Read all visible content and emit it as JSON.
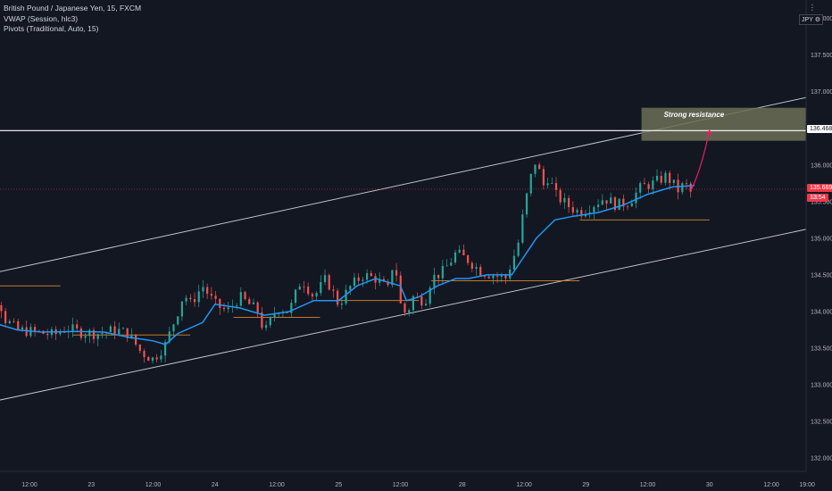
{
  "legend": {
    "symbol": "British Pound / Japanese Yen, 15, FXCM",
    "vwap": "VWAP (Session, hlc3)",
    "pivots": "Pivots (Traditional, Auto, 15)"
  },
  "top_right": {
    "menu_glyph": "⋮",
    "currency": "JPY",
    "settings_glyph": "⚙"
  },
  "annotations": {
    "resistance_label": "Strong resistance"
  },
  "price_tags": {
    "resistance": "136.468",
    "last": "135.669",
    "countdown": "13:54",
    "hidden_partial": "13"
  },
  "colors": {
    "background": "#131722",
    "up_candle": "#26a69a",
    "down_candle": "#ef5350",
    "vwap": "#2196f3",
    "channel": "#d1d4dc",
    "pivot": "#e08a2c",
    "resistance_line": "#ffffff",
    "last_price": "#f23645",
    "arrow": "#e91e63",
    "resistance_box": "#6b6f55"
  },
  "chart_data": {
    "type": "candlestick",
    "symbol": "GBPJPY",
    "timeframe": "15",
    "yaxis": {
      "ylim": [
        131.82,
        138.25
      ],
      "ticks": [
        "132.000",
        "132.500",
        "133.000",
        "133.500",
        "134.000",
        "134.500",
        "135.000",
        "135.500",
        "136.000",
        "136.500",
        "137.000",
        "137.500",
        "138.000"
      ]
    },
    "xaxis": {
      "ticks": [
        "12:00",
        "23",
        "12:00",
        "24",
        "12:00",
        "25",
        "12:00",
        "28",
        "12:00",
        "29",
        "12:00",
        "30",
        "12:00",
        "19:00"
      ],
      "tick_t": [
        0.5,
        1,
        1.5,
        2,
        2.5,
        3,
        3.5,
        4,
        4.5,
        5,
        5.5,
        6,
        6.5,
        6.79
      ]
    },
    "price_path": [
      [
        0.0,
        134.05
      ],
      [
        0.15,
        133.85
      ],
      [
        0.25,
        134.2
      ],
      [
        0.3,
        133.9
      ],
      [
        0.4,
        133.75
      ],
      [
        0.55,
        133.72
      ],
      [
        0.7,
        133.68
      ],
      [
        0.8,
        133.78
      ],
      [
        0.9,
        133.72
      ],
      [
        1.05,
        133.7
      ],
      [
        1.2,
        133.75
      ],
      [
        1.3,
        133.7
      ],
      [
        1.4,
        133.45
      ],
      [
        1.5,
        133.35
      ],
      [
        1.6,
        133.55
      ],
      [
        1.7,
        134.0
      ],
      [
        1.75,
        134.25
      ],
      [
        1.8,
        134.1
      ],
      [
        1.9,
        134.35
      ],
      [
        2.0,
        134.1
      ],
      [
        2.1,
        134.0
      ],
      [
        2.2,
        134.2
      ],
      [
        2.35,
        134.0
      ],
      [
        2.4,
        133.7
      ],
      [
        2.5,
        134.05
      ],
      [
        2.6,
        134.0
      ],
      [
        2.7,
        134.45
      ],
      [
        2.8,
        134.2
      ],
      [
        2.9,
        134.45
      ],
      [
        3.0,
        134.1
      ],
      [
        3.1,
        134.35
      ],
      [
        3.2,
        134.5
      ],
      [
        3.3,
        134.45
      ],
      [
        3.4,
        134.3
      ],
      [
        3.45,
        134.75
      ],
      [
        3.5,
        134.1
      ],
      [
        3.55,
        133.95
      ],
      [
        3.6,
        134.2
      ],
      [
        3.7,
        134.15
      ],
      [
        3.75,
        134.45
      ],
      [
        3.85,
        134.55
      ],
      [
        3.95,
        134.8
      ],
      [
        4.05,
        134.7
      ],
      [
        4.15,
        134.55
      ],
      [
        4.25,
        134.5
      ],
      [
        4.35,
        134.45
      ],
      [
        4.45,
        134.9
      ],
      [
        4.5,
        135.4
      ],
      [
        4.55,
        135.8
      ],
      [
        4.6,
        136.1
      ],
      [
        4.65,
        135.7
      ],
      [
        4.7,
        135.85
      ],
      [
        4.75,
        135.6
      ],
      [
        4.85,
        135.45
      ],
      [
        4.95,
        135.35
      ],
      [
        5.05,
        135.45
      ],
      [
        5.15,
        135.55
      ],
      [
        5.25,
        135.45
      ],
      [
        5.35,
        135.5
      ],
      [
        5.45,
        135.7
      ],
      [
        5.55,
        135.75
      ],
      [
        5.65,
        135.85
      ],
      [
        5.75,
        135.65
      ],
      [
        5.8,
        135.75
      ],
      [
        5.85,
        135.62
      ],
      [
        5.88,
        135.67
      ]
    ],
    "vwap_path": [
      [
        0.0,
        134.05
      ],
      [
        0.2,
        133.85
      ],
      [
        0.4,
        133.75
      ],
      [
        0.6,
        133.72
      ],
      [
        0.9,
        133.73
      ],
      [
        1.1,
        133.72
      ],
      [
        1.3,
        133.65
      ],
      [
        1.5,
        133.6
      ],
      [
        1.6,
        133.55
      ],
      [
        1.7,
        133.7
      ],
      [
        1.9,
        133.85
      ],
      [
        2.0,
        134.1
      ],
      [
        2.2,
        134.05
      ],
      [
        2.4,
        133.95
      ],
      [
        2.6,
        134.0
      ],
      [
        2.8,
        134.15
      ],
      [
        3.0,
        134.15
      ],
      [
        3.15,
        134.35
      ],
      [
        3.3,
        134.45
      ],
      [
        3.5,
        134.35
      ],
      [
        3.55,
        134.15
      ],
      [
        3.65,
        134.2
      ],
      [
        3.8,
        134.35
      ],
      [
        3.95,
        134.45
      ],
      [
        4.05,
        134.45
      ],
      [
        4.2,
        134.5
      ],
      [
        4.4,
        134.5
      ],
      [
        4.6,
        135.0
      ],
      [
        4.75,
        135.25
      ],
      [
        4.9,
        135.3
      ],
      [
        5.1,
        135.35
      ],
      [
        5.3,
        135.45
      ],
      [
        5.5,
        135.6
      ],
      [
        5.7,
        135.7
      ],
      [
        5.88,
        135.72
      ]
    ],
    "channel_upper": [
      [
        0.0,
        134.45
      ],
      [
        7.0,
        137.0
      ]
    ],
    "channel_lower": [
      [
        0.0,
        132.7
      ],
      [
        7.0,
        135.2
      ]
    ],
    "resistance_level": 136.468,
    "last_price": 135.669,
    "resistance_zone": {
      "t": [
        5.45,
        6.95
      ],
      "y": [
        136.33,
        136.78
      ]
    },
    "arrow": {
      "from": [
        5.85,
        135.65
      ],
      "to": [
        6.0,
        136.48
      ]
    },
    "pivot_levels": [
      {
        "t": [
          0.0,
          0.75
        ],
        "y": 134.35
      },
      {
        "t": [
          0.85,
          1.8
        ],
        "y": 133.68
      },
      {
        "t": [
          2.15,
          2.85
        ],
        "y": 133.92
      },
      {
        "t": [
          2.95,
          3.65
        ],
        "y": 134.15
      },
      {
        "t": [
          3.75,
          4.95
        ],
        "y": 134.42
      },
      {
        "t": [
          4.95,
          6.0
        ],
        "y": 135.25
      }
    ]
  }
}
